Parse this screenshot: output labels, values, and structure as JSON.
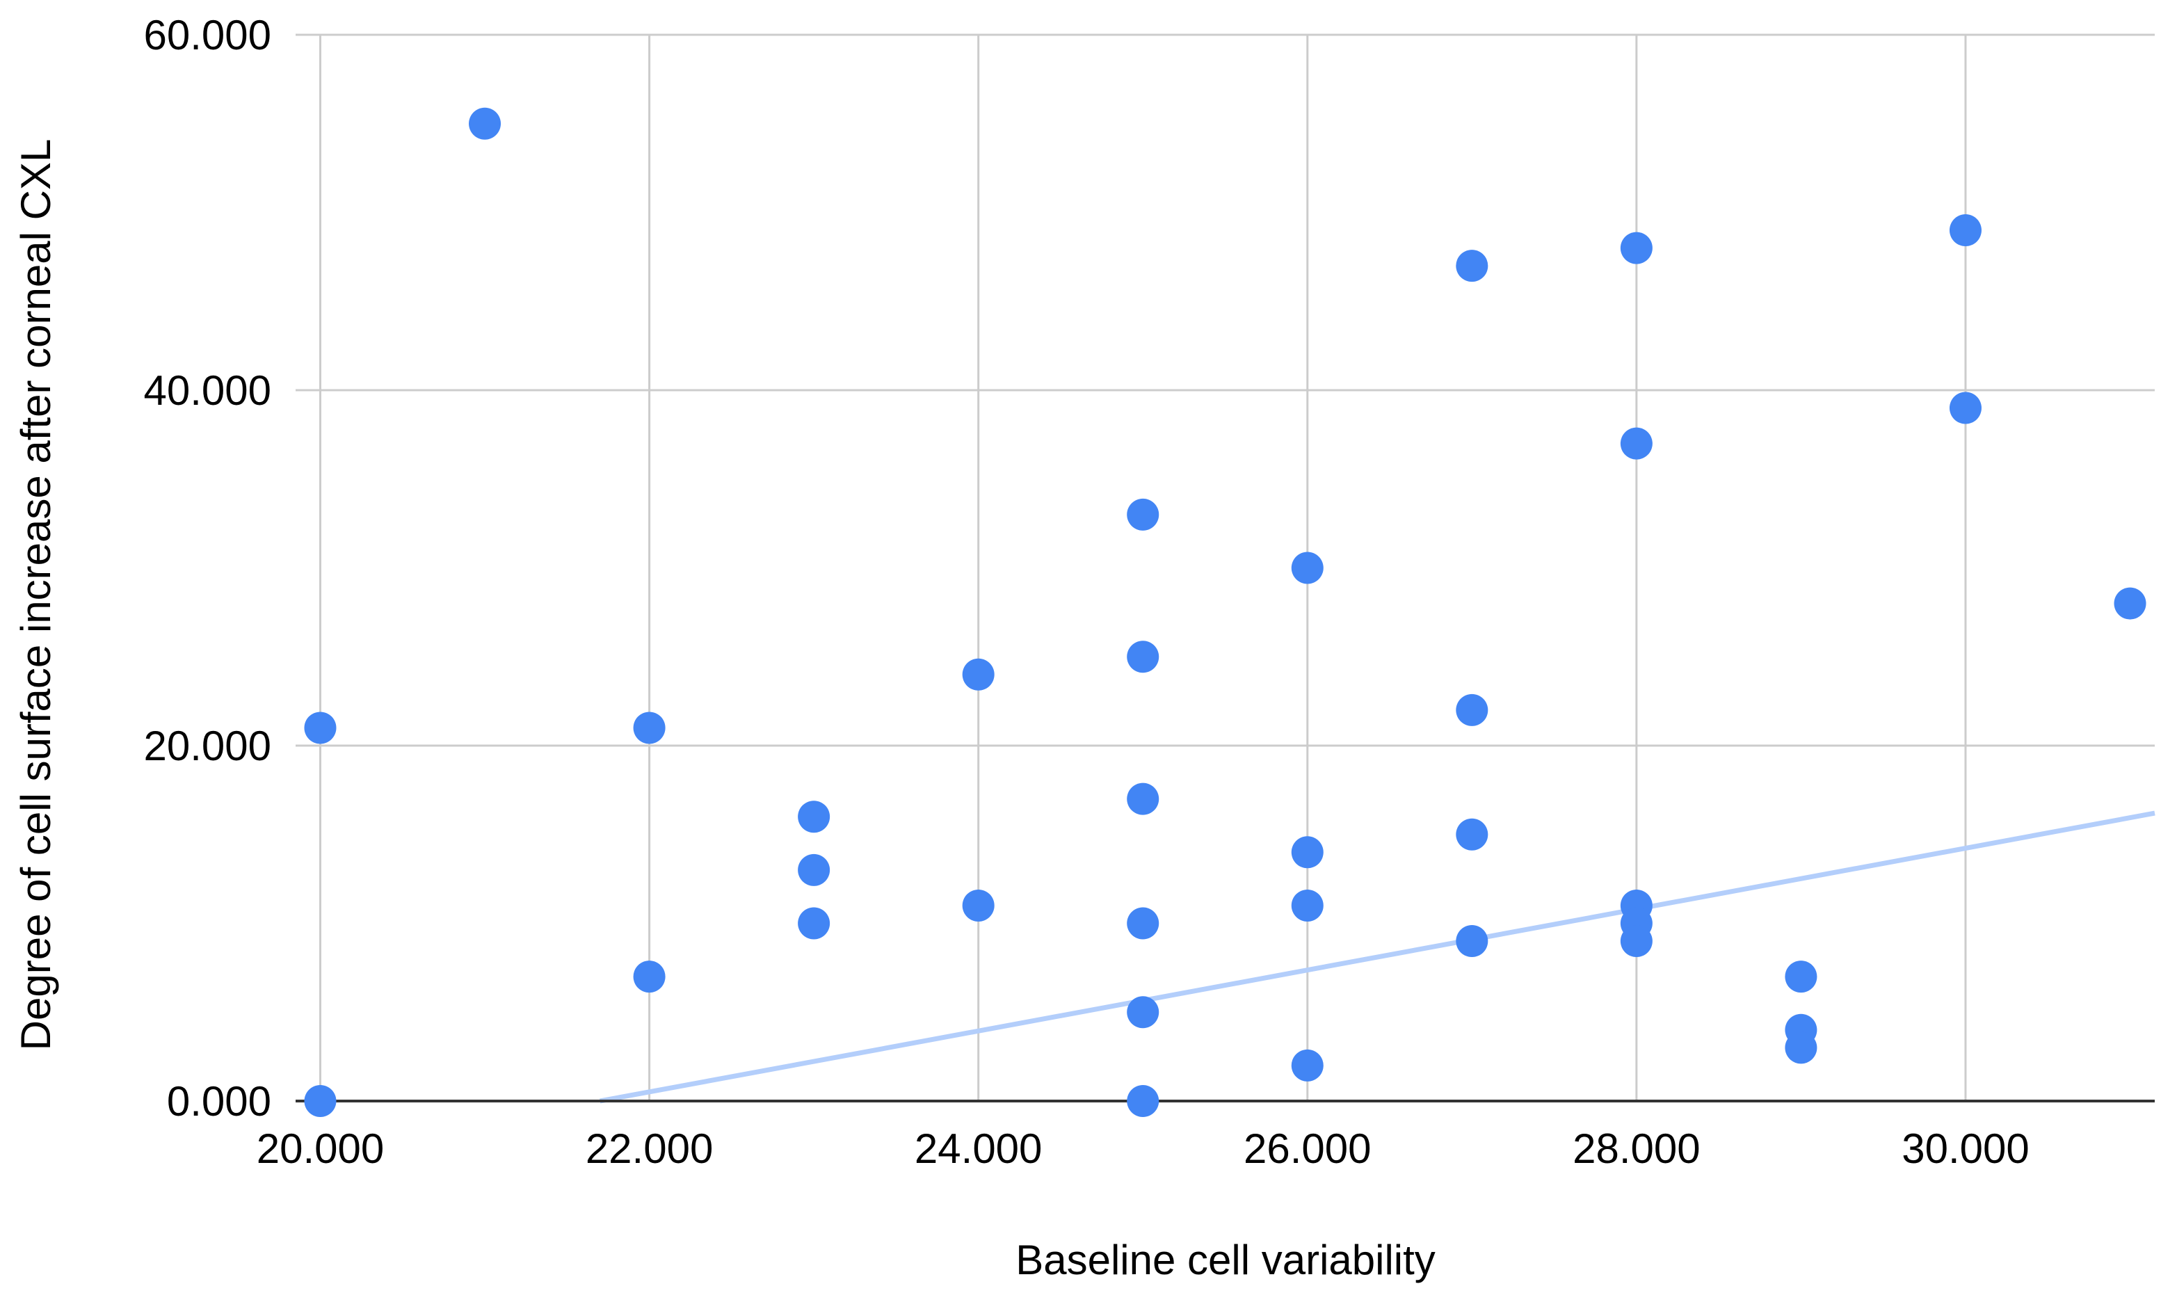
{
  "chart_data": {
    "type": "scatter",
    "title": "",
    "xlabel": "Baseline cell variability",
    "ylabel": "Degree of cell surface increase after corneal CXL",
    "xlim": [
      19.85,
      31.15
    ],
    "ylim": [
      0,
      60
    ],
    "x_ticks": [
      20,
      22,
      24,
      26,
      28,
      30
    ],
    "y_ticks": [
      0,
      20,
      40,
      60
    ],
    "x_tick_labels": [
      "20.000",
      "22.000",
      "24.000",
      "26.000",
      "28.000",
      "30.000"
    ],
    "y_tick_labels": [
      "0.000",
      "20.000",
      "40.000",
      "60.000"
    ],
    "grid": true,
    "legend": "none",
    "series": [
      {
        "color": "#4285f4",
        "points": [
          {
            "x": 20,
            "y": 21
          },
          {
            "x": 20,
            "y": 0
          },
          {
            "x": 21,
            "y": 55
          },
          {
            "x": 22,
            "y": 21
          },
          {
            "x": 22,
            "y": 7
          },
          {
            "x": 23,
            "y": 16
          },
          {
            "x": 23,
            "y": 13
          },
          {
            "x": 23,
            "y": 10
          },
          {
            "x": 24,
            "y": 24
          },
          {
            "x": 24,
            "y": 11
          },
          {
            "x": 25,
            "y": 33
          },
          {
            "x": 25,
            "y": 25
          },
          {
            "x": 25,
            "y": 17
          },
          {
            "x": 25,
            "y": 10
          },
          {
            "x": 25,
            "y": 5
          },
          {
            "x": 25,
            "y": 0
          },
          {
            "x": 26,
            "y": 30
          },
          {
            "x": 26,
            "y": 14
          },
          {
            "x": 26,
            "y": 11
          },
          {
            "x": 26,
            "y": 2
          },
          {
            "x": 27,
            "y": 47
          },
          {
            "x": 27,
            "y": 22
          },
          {
            "x": 27,
            "y": 15
          },
          {
            "x": 27,
            "y": 9
          },
          {
            "x": 28,
            "y": 48
          },
          {
            "x": 28,
            "y": 37
          },
          {
            "x": 28,
            "y": 11
          },
          {
            "x": 28,
            "y": 10
          },
          {
            "x": 28,
            "y": 9
          },
          {
            "x": 29,
            "y": 7
          },
          {
            "x": 29,
            "y": 4
          },
          {
            "x": 29,
            "y": 3
          },
          {
            "x": 30,
            "y": 49
          },
          {
            "x": 30,
            "y": 39
          },
          {
            "x": 31,
            "y": 28
          }
        ]
      }
    ],
    "trendline": {
      "color": "#b3cefb",
      "points": [
        {
          "x": 21.7,
          "y": 0
        },
        {
          "x": 31.15,
          "y": 16.2
        }
      ]
    }
  }
}
